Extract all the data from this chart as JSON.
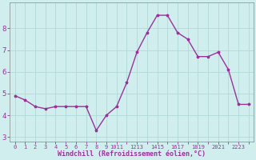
{
  "x": [
    0,
    1,
    2,
    3,
    4,
    5,
    6,
    7,
    8,
    9,
    10,
    11,
    12,
    13,
    14,
    15,
    16,
    17,
    18,
    19,
    20,
    21,
    22,
    23
  ],
  "y": [
    4.9,
    4.7,
    4.4,
    4.3,
    4.4,
    4.4,
    4.4,
    4.4,
    3.3,
    4.0,
    4.4,
    5.5,
    6.9,
    7.8,
    8.6,
    8.6,
    7.8,
    7.5,
    6.7,
    6.7,
    6.9,
    6.1,
    4.5,
    4.5
  ],
  "line_color": "#993399",
  "marker": "*",
  "marker_size": 2.5,
  "bg_color": "#d0eeee",
  "grid_color": "#b0d8d8",
  "xlabel": "Windchill (Refroidissement éolien,°C)",
  "xlabel_color": "#993399",
  "tick_color": "#993399",
  "ylabel_ticks": [
    3,
    4,
    5,
    6,
    7,
    8
  ],
  "xlim": [
    -0.5,
    23.5
  ],
  "ylim": [
    2.8,
    9.2
  ],
  "line_width": 1.0,
  "xtick_labels": [
    "0",
    "1",
    "2",
    "3",
    "4",
    "5",
    "6",
    "7",
    "8",
    "9",
    "1011",
    "1213",
    "1415",
    "1617",
    "1819",
    "2021",
    "2223"
  ]
}
